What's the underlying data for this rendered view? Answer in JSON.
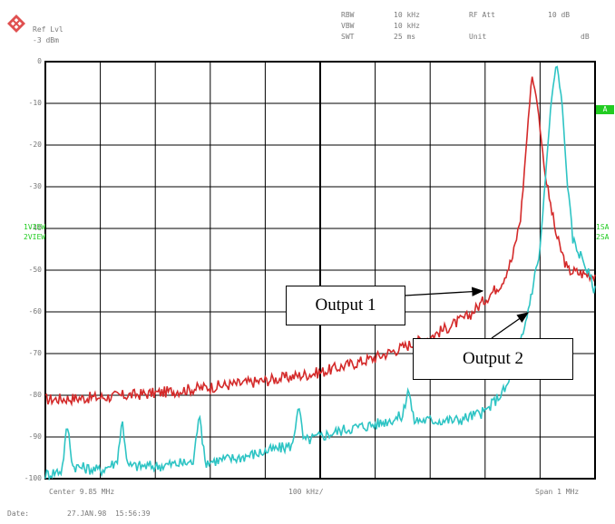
{
  "header": {
    "ref_lvl_label": "Ref Lvl",
    "ref_lvl_value": "-3 dBm",
    "rbw_label": "RBW",
    "rbw_value": "10 kHz",
    "vbw_label": "VBW",
    "vbw_value": "10 kHz",
    "swt_label": "SWT",
    "swt_value": "25 ms",
    "rf_att_label": "RF Att",
    "rf_att_value": "10 dB",
    "unit_label": "Unit",
    "unit_value": "dB"
  },
  "side_labels": {
    "trace1": "1VIEW",
    "trace2": "2VIEW",
    "right_a": "A",
    "right_sa1": "1SA",
    "right_sa2": "2SA"
  },
  "footer": {
    "center": "Center 9.85 MHz",
    "div": "100 kHz/",
    "span": "Span 1 MHz",
    "date_label": "Date:",
    "date_value": "27.JAN.98  15:56:39"
  },
  "callouts": {
    "output1": "Output 1",
    "output2": "Output 2"
  },
  "colors": {
    "output1": "#d42a2a",
    "output2": "#2ec4c4",
    "grid": "#000000",
    "marker": "#22cc22"
  },
  "chart_data": {
    "type": "line",
    "xlabel": "",
    "ylabel": "",
    "x_unit": "MHz",
    "xlim": [
      9.35,
      10.35
    ],
    "ylim": [
      -100,
      0
    ],
    "yticks": [
      0,
      -10,
      -20,
      -30,
      -40,
      -50,
      -60,
      -70,
      -80,
      -90,
      -100
    ],
    "ytick_labels": [
      "0",
      "-10",
      "-20",
      "-30",
      "-40",
      "-50",
      "-60",
      "-70",
      "-80",
      "-90",
      "-100"
    ],
    "grid": true,
    "series": [
      {
        "name": "Output 1",
        "x": [
          9.35,
          9.45,
          9.55,
          9.65,
          9.75,
          9.85,
          9.95,
          10.05,
          10.12,
          10.18,
          10.2,
          10.215,
          10.225,
          10.235,
          10.245,
          10.26,
          10.28,
          10.3,
          10.33,
          10.35
        ],
        "y": [
          -81,
          -80.5,
          -79.5,
          -78,
          -76.5,
          -74.5,
          -71,
          -66,
          -61,
          -53,
          -47,
          -37,
          -20,
          -3,
          -10,
          -28,
          -42,
          -50,
          -51,
          -51
        ]
      },
      {
        "name": "Output 2",
        "x": [
          9.35,
          9.38,
          9.39,
          9.4,
          9.45,
          9.48,
          9.49,
          9.5,
          9.55,
          9.62,
          9.63,
          9.64,
          9.7,
          9.8,
          9.81,
          9.82,
          9.9,
          9.95,
          10.0,
          10.01,
          10.02,
          10.05,
          10.1,
          10.15,
          10.19,
          10.22,
          10.25,
          10.27,
          10.28,
          10.29,
          10.3,
          10.31,
          10.33,
          10.35
        ],
        "y": [
          -99,
          -98,
          -87,
          -97,
          -98,
          -96,
          -86,
          -97,
          -97,
          -96,
          -83,
          -96,
          -95,
          -92,
          -82,
          -91,
          -88,
          -87,
          -85,
          -78,
          -86,
          -86,
          -86,
          -84,
          -78,
          -65,
          -45,
          -10,
          0,
          -10,
          -30,
          -43,
          -48,
          -55
        ]
      }
    ]
  }
}
